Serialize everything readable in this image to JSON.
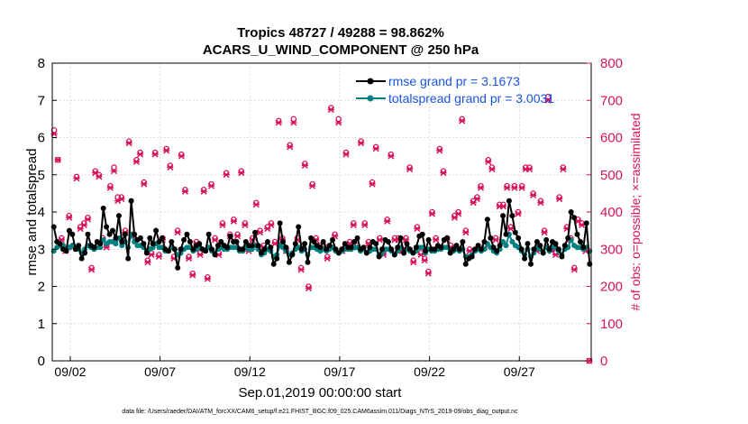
{
  "chart_data": {
    "type": "line",
    "title_line1": "Tropics 48727 / 49288 = 98.862%",
    "title_line2": "ACARS_U_WIND_COMPONENT @ 250 hPa",
    "ylabel_left": "rmse and totalspread",
    "ylabel_right": "# of obs: o=possible; ×=assimilated",
    "xlabel": "Sep.01,2019 00:00:00 start",
    "footer": "data file: /Users/raeder/DAI/ATM_forcXX/CAM6_setup/f.e21.FHIST_BGC.f09_025.CAM6assim.011/Diags_NTrS_2019-09/obs_diag_output.nc",
    "xlim": [
      0.5,
      30.5
    ],
    "ylim_left": [
      0,
      8
    ],
    "ylim_right": [
      0,
      800
    ],
    "x_ticks": [
      1.5,
      6.5,
      11.5,
      16.5,
      21.5,
      26.5
    ],
    "x_tick_labels": [
      "09/02",
      "09/07",
      "09/12",
      "09/17",
      "09/22",
      "09/27"
    ],
    "y_left_ticks": [
      "0",
      "1",
      "2",
      "3",
      "4",
      "5",
      "6",
      "7",
      "8"
    ],
    "y_right_ticks": [
      "0",
      "100",
      "200",
      "300",
      "400",
      "500",
      "600",
      "700",
      "800"
    ],
    "legend": [
      {
        "name": "rmse grand pr = 3.1673",
        "color": "#000000"
      },
      {
        "name": "totalspread grand pr = 3.0031",
        "color": "#008080"
      }
    ],
    "colors": {
      "rmse": "#000000",
      "spread": "#008080",
      "obs": "#d6135c",
      "text_blue": "#1a55e0"
    },
    "series": [
      {
        "name": "rmse",
        "values": [
          3.6,
          3.2,
          3.15,
          3.0,
          2.95,
          3.5,
          3.4,
          3.0,
          3.1,
          2.75,
          2.9,
          3.4,
          3.1,
          3.05,
          3.2,
          3.15,
          4.1,
          3.6,
          3.4,
          3.5,
          3.3,
          3.9,
          3.2,
          3.4,
          2.75,
          4.3,
          3.4,
          3.25,
          3.3,
          3.15,
          2.9,
          3.3,
          3.15,
          3.5,
          3.2,
          3.3,
          3.0,
          2.95,
          3.2,
          3.0,
          2.5,
          3.0,
          3.25,
          3.4,
          3.2,
          3.0,
          3.1,
          3.15,
          3.0,
          2.95,
          3.4,
          3.0,
          2.85,
          3.1,
          3.2,
          3.1,
          3.05,
          3.35,
          3.2,
          3.2,
          3.0,
          3.0,
          3.2,
          3.1,
          3.1,
          3.45,
          3.1,
          2.9,
          3.0,
          3.2,
          3.05,
          2.6,
          2.75,
          3.7,
          3.2,
          3.05,
          2.65,
          2.85,
          3.15,
          3.6,
          3.0,
          3.15,
          2.65,
          3.3,
          3.2,
          3.1,
          3.05,
          3.2,
          3.0,
          3.1,
          3.25,
          3.0,
          2.9,
          3.0,
          3.15,
          3.05,
          3.05,
          3.2,
          3.3,
          3.0,
          3.05,
          2.9,
          3.05,
          3.2,
          3.15,
          2.8,
          3.0,
          3.25,
          3.2,
          3.0,
          2.85,
          3.05,
          3.3,
          2.9,
          3.15,
          3.0,
          2.9,
          3.05,
          3.35,
          3.4,
          2.95,
          3.25,
          3.0,
          3.0,
          3.1,
          3.05,
          3.25,
          3.3,
          2.9,
          3.0,
          3.1,
          3.0,
          3.2,
          2.6,
          2.75,
          2.8,
          3.0,
          3.1,
          3.0,
          3.2,
          3.8,
          3.3,
          3.05,
          2.95,
          3.1,
          3.9,
          3.4,
          4.3,
          3.9,
          3.45,
          3.3,
          3.0,
          2.75,
          3.15,
          2.6,
          3.0,
          3.2,
          3.1,
          2.9,
          3.25,
          3.0,
          3.2,
          3.15,
          3.0,
          2.8,
          3.1,
          3.3,
          4.0,
          3.85,
          3.4,
          3.2,
          3.05,
          3.7,
          2.6
        ]
      },
      {
        "name": "totalspread",
        "values": [
          2.95,
          3.05,
          3.1,
          3.1,
          3.0,
          3.05,
          3.1,
          3.05,
          3.0,
          2.9,
          3.0,
          3.1,
          3.05,
          3.0,
          3.05,
          3.05,
          3.25,
          3.15,
          3.2,
          3.2,
          3.15,
          3.3,
          3.1,
          3.2,
          3.05,
          3.4,
          3.2,
          3.1,
          3.1,
          3.05,
          2.95,
          3.0,
          3.05,
          3.15,
          3.05,
          3.05,
          2.95,
          2.95,
          3.05,
          3.0,
          2.85,
          2.9,
          3.0,
          3.05,
          3.05,
          2.95,
          3.0,
          3.05,
          3.0,
          2.95,
          3.05,
          2.95,
          2.9,
          3.0,
          3.05,
          3.0,
          3.0,
          3.05,
          3.05,
          3.05,
          2.95,
          2.95,
          3.05,
          3.0,
          3.0,
          3.1,
          3.0,
          2.85,
          2.9,
          3.0,
          2.95,
          2.8,
          2.85,
          3.1,
          3.05,
          2.95,
          2.85,
          2.9,
          3.0,
          3.05,
          2.95,
          3.0,
          2.85,
          3.05,
          3.05,
          3.0,
          2.95,
          3.0,
          2.95,
          3.0,
          3.05,
          2.95,
          2.9,
          2.95,
          3.0,
          3.0,
          3.0,
          3.05,
          3.05,
          2.95,
          3.0,
          2.9,
          2.95,
          3.0,
          3.0,
          2.85,
          2.9,
          3.0,
          3.0,
          2.95,
          2.85,
          2.95,
          3.05,
          2.9,
          3.0,
          2.95,
          2.9,
          2.95,
          3.05,
          3.05,
          2.9,
          3.0,
          2.95,
          2.95,
          3.0,
          3.0,
          3.05,
          3.05,
          2.9,
          2.95,
          3.0,
          2.95,
          3.0,
          2.8,
          2.8,
          2.85,
          2.95,
          3.0,
          2.95,
          3.0,
          3.15,
          3.05,
          2.95,
          2.9,
          3.0,
          3.2,
          3.1,
          3.4,
          3.2,
          3.1,
          3.05,
          2.95,
          2.85,
          3.0,
          2.8,
          2.9,
          3.05,
          3.0,
          2.9,
          3.05,
          2.95,
          3.05,
          3.05,
          2.95,
          2.85,
          3.0,
          3.05,
          3.25,
          3.1,
          3.05,
          3.05,
          3.0,
          3.05,
          2.95
        ]
      },
      {
        "name": "obs_possible",
        "values": [
          620,
          540,
          330,
          300,
          390,
          310,
          495,
          360,
          370,
          385,
          250,
          510,
          500,
          330,
          310,
          470,
          520,
          440,
          440,
          350,
          590,
          340,
          540,
          560,
          480,
          270,
          290,
          560,
          285,
          330,
          570,
          525,
          280,
          350,
          555,
          460,
          280,
          235,
          320,
          290,
          460,
          225,
          475,
          330,
          290,
          370,
          505,
          340,
          380,
          340,
          510,
          370,
          300,
          330,
          425,
          350,
          310,
          360,
          370,
          320,
          645,
          330,
          300,
          580,
          650,
          330,
          250,
          530,
          200,
          475,
          330,
          310,
          310,
          280,
          680,
          340,
          650,
          300,
          560,
          320,
          370,
          310,
          590,
          370,
          320,
          480,
          575,
          330,
          290,
          380,
          555,
          330,
          330,
          300,
          330,
          520,
          270,
          360,
          290,
          275,
          240,
          400,
          330,
          570,
          510,
          330,
          310,
          390,
          400,
          650,
          350,
          300,
          430,
          440,
          470,
          310,
          540,
          520,
          330,
          420,
          420,
          470,
          360,
          470,
          400,
          470,
          520,
          520,
          450,
          300,
          430,
          350,
          710,
          300,
          290,
          440,
          520,
          360,
          330,
          250,
          380,
          370,
          300,
          0
        ]
      },
      {
        "name": "obs_assimilated",
        "values": [
          610,
          540,
          325,
          295,
          385,
          305,
          490,
          355,
          365,
          380,
          245,
          505,
          495,
          325,
          305,
          465,
          510,
          430,
          435,
          345,
          585,
          335,
          535,
          555,
          475,
          265,
          285,
          555,
          280,
          325,
          565,
          520,
          275,
          345,
          550,
          455,
          275,
          230,
          315,
          285,
          455,
          220,
          470,
          325,
          285,
          365,
          500,
          335,
          375,
          335,
          505,
          365,
          295,
          325,
          420,
          345,
          305,
          355,
          365,
          315,
          640,
          325,
          295,
          575,
          640,
          325,
          245,
          525,
          195,
          470,
          325,
          305,
          305,
          275,
          675,
          335,
          640,
          295,
          555,
          315,
          365,
          305,
          585,
          365,
          315,
          475,
          570,
          325,
          285,
          375,
          550,
          325,
          325,
          295,
          325,
          515,
          265,
          355,
          285,
          270,
          235,
          395,
          325,
          565,
          505,
          325,
          305,
          385,
          395,
          645,
          345,
          295,
          425,
          435,
          465,
          305,
          535,
          515,
          325,
          415,
          415,
          465,
          355,
          465,
          395,
          465,
          515,
          515,
          445,
          295,
          425,
          345,
          700,
          295,
          285,
          435,
          515,
          355,
          325,
          245,
          375,
          365,
          295,
          0
        ]
      }
    ]
  }
}
